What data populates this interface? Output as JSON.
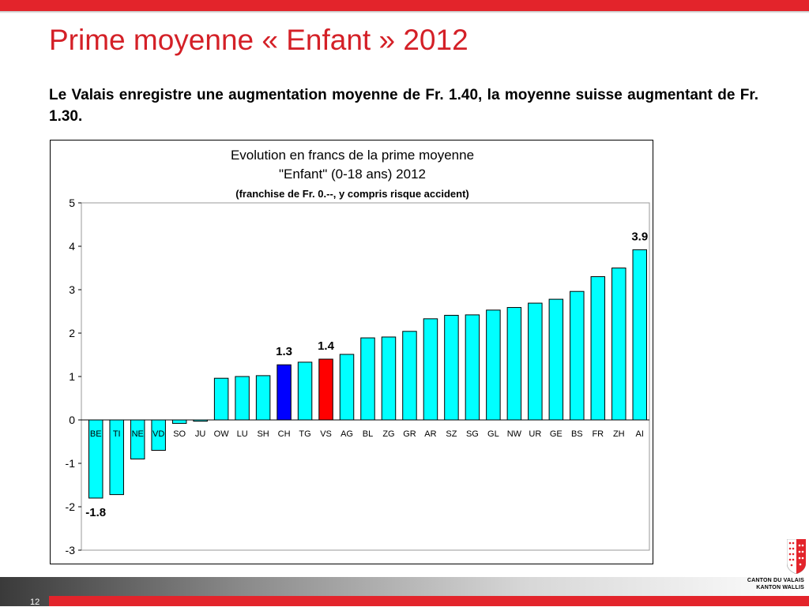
{
  "slide": {
    "title": "Prime moyenne « Enfant » 2012",
    "subtitle": "Le Valais enregistre une augmentation moyenne de Fr. 1.40, la moyenne suisse augmentant de Fr. 1.30.",
    "page_number": "12"
  },
  "logo": {
    "line1": "CANTON DU VALAIS",
    "line2": "KANTON WALLIS"
  },
  "colors": {
    "accent_red": "#e3242b",
    "bar_default": "#00ffff",
    "bar_ch": "#0000ff",
    "bar_vs": "#ff0000"
  },
  "chart_data": {
    "type": "bar",
    "title_line1": "Evolution en francs de la prime moyenne",
    "title_line2": "\"Enfant\" (0-18 ans) 2012",
    "title_line3": "(franchise de Fr. 0.--, y compris risque accident)",
    "categories": [
      "BE",
      "TI",
      "NE",
      "VD",
      "SO",
      "JU",
      "OW",
      "LU",
      "SH",
      "CH",
      "TG",
      "VS",
      "AG",
      "BL",
      "ZG",
      "GR",
      "AR",
      "SZ",
      "SG",
      "GL",
      "NW",
      "UR",
      "GE",
      "BS",
      "FR",
      "ZH",
      "AI"
    ],
    "values": [
      -1.8,
      -1.72,
      -0.9,
      -0.7,
      -0.08,
      -0.03,
      0.96,
      1.0,
      1.02,
      1.27,
      1.33,
      1.4,
      1.51,
      1.89,
      1.91,
      2.04,
      2.33,
      2.41,
      2.42,
      2.53,
      2.59,
      2.69,
      2.78,
      2.96,
      3.3,
      3.5,
      3.92
    ],
    "highlight": {
      "CH": "#0000ff",
      "VS": "#ff0000"
    },
    "data_labels": [
      {
        "category": "BE",
        "text": "-1.8"
      },
      {
        "category": "CH",
        "text": "1.3"
      },
      {
        "category": "VS",
        "text": "1.4"
      },
      {
        "category": "AI",
        "text": "3.9"
      }
    ],
    "ylim": [
      -3,
      5
    ],
    "yticks": [
      "5",
      "4",
      "3",
      "2",
      "1",
      "0",
      "-1",
      "-2",
      "-3"
    ],
    "grid": false,
    "legend": "none"
  }
}
